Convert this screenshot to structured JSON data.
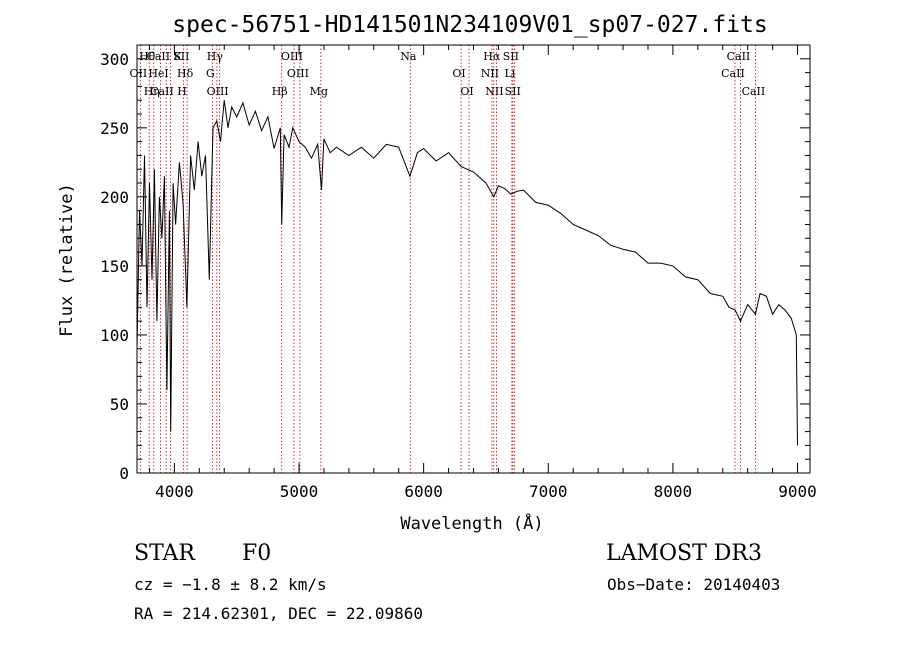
{
  "chart_data": {
    "type": "line",
    "title": "spec-56751-HD141501N234109V01_sp07-027.fits",
    "xlabel": "Wavelength (Å)",
    "ylabel": "Flux (relative)",
    "xlim": [
      3700,
      9100
    ],
    "ylim": [
      0,
      310
    ],
    "xticks": [
      {
        "value": 4000,
        "label": "4000"
      },
      {
        "value": 5000,
        "label": "5000"
      },
      {
        "value": 6000,
        "label": "6000"
      },
      {
        "value": 7000,
        "label": "7000"
      },
      {
        "value": 8000,
        "label": "8000"
      },
      {
        "value": 9000,
        "label": "9000"
      }
    ],
    "yticks": [
      {
        "value": 0,
        "label": "0"
      },
      {
        "value": 50,
        "label": "50"
      },
      {
        "value": 100,
        "label": "100"
      },
      {
        "value": 150,
        "label": "150"
      },
      {
        "value": 200,
        "label": "200"
      },
      {
        "value": 250,
        "label": "250"
      },
      {
        "value": 300,
        "label": "300"
      }
    ],
    "series": [
      {
        "name": "flux",
        "x": [
          3700,
          3720,
          3740,
          3760,
          3780,
          3800,
          3820,
          3840,
          3860,
          3880,
          3900,
          3920,
          3940,
          3960,
          3970,
          3990,
          4010,
          4040,
          4070,
          4100,
          4130,
          4160,
          4190,
          4220,
          4250,
          4280,
          4310,
          4340,
          4370,
          4400,
          4430,
          4460,
          4500,
          4550,
          4600,
          4650,
          4700,
          4750,
          4800,
          4850,
          4861,
          4880,
          4920,
          4950,
          5000,
          5050,
          5100,
          5150,
          5180,
          5200,
          5250,
          5300,
          5400,
          5500,
          5600,
          5700,
          5800,
          5890,
          5950,
          6000,
          6100,
          6200,
          6300,
          6400,
          6500,
          6563,
          6600,
          6650,
          6700,
          6750,
          6800,
          6900,
          7000,
          7100,
          7200,
          7300,
          7400,
          7500,
          7600,
          7700,
          7800,
          7900,
          8000,
          8100,
          8200,
          8300,
          8400,
          8450,
          8500,
          8542,
          8600,
          8662,
          8700,
          8750,
          8800,
          8850,
          8900,
          8950,
          8990,
          9000
        ],
        "values": [
          90,
          190,
          150,
          230,
          120,
          210,
          140,
          220,
          110,
          200,
          170,
          215,
          60,
          190,
          30,
          210,
          180,
          225,
          195,
          120,
          230,
          205,
          240,
          215,
          230,
          140,
          250,
          255,
          240,
          270,
          250,
          265,
          258,
          268,
          252,
          262,
          248,
          258,
          235,
          250,
          180,
          245,
          236,
          250,
          240,
          236,
          228,
          238,
          205,
          242,
          232,
          236,
          230,
          236,
          228,
          238,
          236,
          215,
          232,
          235,
          226,
          232,
          222,
          218,
          210,
          200,
          208,
          206,
          202,
          204,
          205,
          196,
          194,
          188,
          180,
          176,
          172,
          165,
          162,
          160,
          152,
          152,
          150,
          142,
          140,
          130,
          128,
          120,
          118,
          110,
          122,
          115,
          130,
          128,
          115,
          122,
          118,
          112,
          100,
          20
        ]
      }
    ],
    "lines": [
      {
        "label": "Hθ",
        "x": 3798
      },
      {
        "label": "OII",
        "x": 3727
      },
      {
        "label": "Hη",
        "x": 3835
      },
      {
        "label": "CaII K",
        "x": 3934
      },
      {
        "label": "HeI",
        "x": 3889
      },
      {
        "label": "CaII H",
        "x": 3969
      },
      {
        "label": "SII",
        "x": 4072
      },
      {
        "label": "Hδ",
        "x": 4102
      },
      {
        "label": "OIII",
        "x": 4363
      },
      {
        "label": "Hγ",
        "x": 4341
      },
      {
        "label": "G",
        "x": 4305
      },
      {
        "label": "Hβ",
        "x": 4861
      },
      {
        "label": "OIII",
        "x": 4959
      },
      {
        "label": "OIII",
        "x": 5007
      },
      {
        "label": "Mg",
        "x": 5175
      },
      {
        "label": "Na",
        "x": 5893
      },
      {
        "label": "OI",
        "x": 6300
      },
      {
        "label": "OI",
        "x": 6364
      },
      {
        "label": "Hα",
        "x": 6563
      },
      {
        "label": "NII",
        "x": 6548
      },
      {
        "label": "NII",
        "x": 6584
      },
      {
        "label": "SII",
        "x": 6716
      },
      {
        "label": "Li",
        "x": 6708
      },
      {
        "label": "SII",
        "x": 6731
      },
      {
        "label": "CaII",
        "x": 8542
      },
      {
        "label": "CaII",
        "x": 8498
      },
      {
        "label": "CaII",
        "x": 8662
      }
    ],
    "line_style": {
      "color": "#c00000",
      "dash": "dotted"
    }
  },
  "info": {
    "object_class": "STAR",
    "subclass": "F0",
    "survey": "LAMOST DR3",
    "redshift_text": "cz = −1.8 ± 8.2 km/s",
    "obs_date_text": "Obs−Date: 20140403",
    "coords_text": "RA = 214.62301, DEC =  22.09860"
  }
}
